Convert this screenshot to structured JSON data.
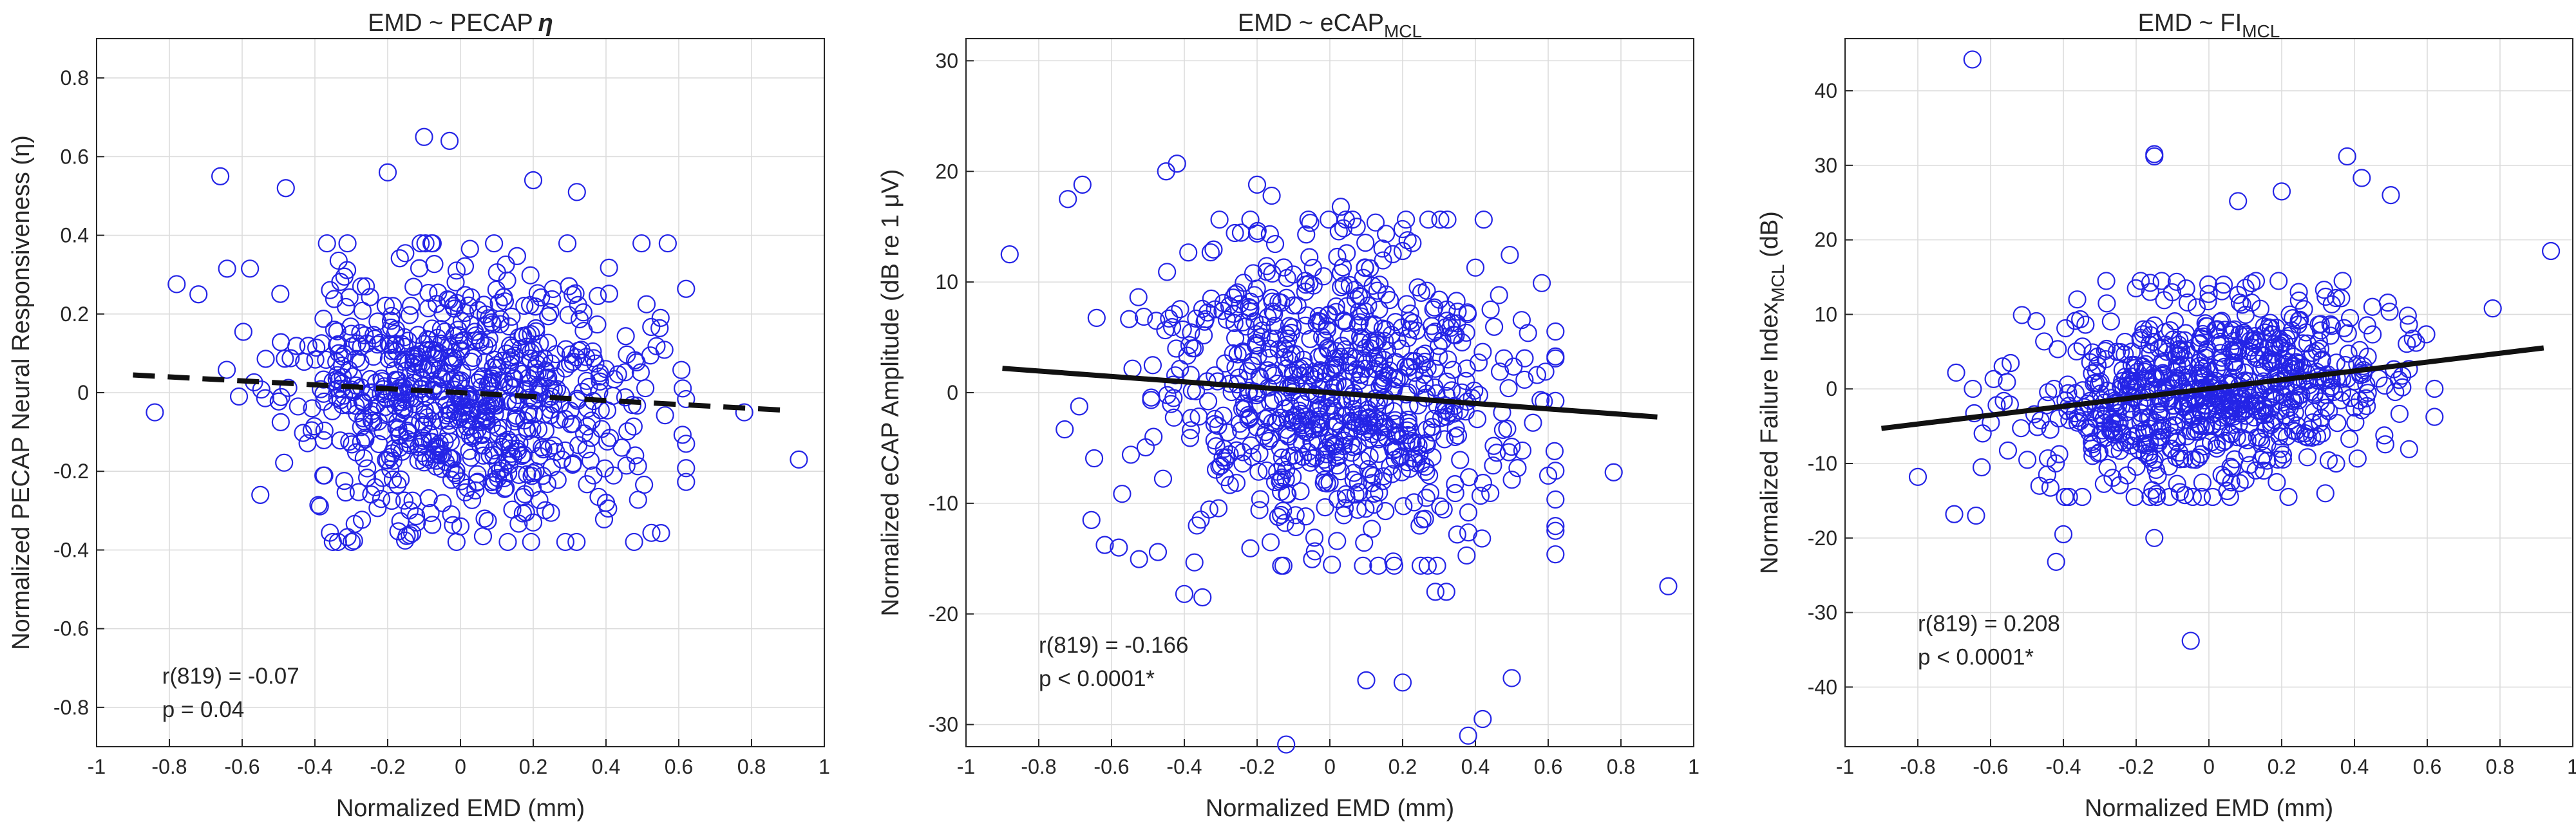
{
  "figure": {
    "marker_color": "#2424e6",
    "grid_color": "#dcdcdc",
    "axis_color": "#262626",
    "fit_color": "#111111"
  },
  "chart_data": [
    {
      "type": "scatter",
      "title": "EMD ~ PECAP",
      "title_symbol": "η",
      "title_sub": "",
      "xlabel": "Normalized EMD (mm)",
      "ylabel": "Normalized PECAP Neural Responsiveness (η)",
      "ylabel_sub": "",
      "xlim": [
        -1,
        1
      ],
      "ylim": [
        -0.9,
        0.9
      ],
      "xticks": [
        -1,
        -0.8,
        -0.6,
        -0.4,
        -0.2,
        0,
        0.2,
        0.4,
        0.6,
        0.8,
        1
      ],
      "xtick_labels": [
        "-1",
        "-0.8",
        "-0.6",
        "-0.4",
        "-0.2",
        "0",
        "0.2",
        "0.4",
        "0.6",
        "0.8",
        "1"
      ],
      "yticks": [
        -0.8,
        -0.6,
        -0.4,
        -0.2,
        0,
        0.2,
        0.4,
        0.6,
        0.8
      ],
      "ytick_labels": [
        "-0.8",
        "-0.6",
        "-0.4",
        "-0.2",
        "0",
        "0.2",
        "0.4",
        "0.6",
        "0.8"
      ],
      "grid": true,
      "fit": {
        "x": [
          -0.9,
          0.9
        ],
        "y": [
          0.045,
          -0.045
        ],
        "style": "dashed"
      },
      "stats": [
        "r(819) = -0.07",
        "p = 0.04"
      ],
      "stats_anchor": [
        -0.82,
        -0.74
      ],
      "highlight_points": [
        {
          "x": -0.84,
          "y": -0.05
        },
        {
          "x": -0.72,
          "y": 0.25
        },
        {
          "x": -0.66,
          "y": 0.55
        },
        {
          "x": -0.48,
          "y": 0.52
        },
        {
          "x": -0.2,
          "y": 0.56
        },
        {
          "x": -0.1,
          "y": 0.65
        },
        {
          "x": -0.03,
          "y": 0.64
        },
        {
          "x": 0.2,
          "y": 0.54
        },
        {
          "x": 0.32,
          "y": 0.51
        },
        {
          "x": 0.55,
          "y": 0.19
        },
        {
          "x": 0.62,
          "y": -0.13
        },
        {
          "x": 0.78,
          "y": -0.05
        },
        {
          "x": 0.93,
          "y": -0.17
        },
        {
          "x": 0.0,
          "y": -0.34
        },
        {
          "x": 0.2,
          "y": -0.33
        },
        {
          "x": 0.4,
          "y": -0.28
        },
        {
          "x": -0.55,
          "y": -0.26
        },
        {
          "x": -0.12,
          "y": -0.33
        }
      ],
      "cloud": {
        "n": 780,
        "seed": 11,
        "mean_x": 0.0,
        "sd_x": 0.24,
        "slope": -0.05,
        "intercept": 0.0,
        "sd_y": 0.165
      }
    },
    {
      "type": "scatter",
      "title": "EMD ~ eCAP",
      "title_symbol": "",
      "title_sub": "MCL",
      "xlabel": "Normalized EMD (mm)",
      "ylabel": "Normalized eCAP Amplitude (dB re 1 μV)",
      "ylabel_sub": "",
      "xlim": [
        -1,
        1
      ],
      "ylim": [
        -32,
        32
      ],
      "xticks": [
        -1,
        -0.8,
        -0.6,
        -0.4,
        -0.2,
        0,
        0.2,
        0.4,
        0.6,
        0.8,
        1
      ],
      "xtick_labels": [
        "-1",
        "-0.8",
        "-0.6",
        "-0.4",
        "-0.2",
        "0",
        "0.2",
        "0.4",
        "0.6",
        "0.8",
        "1"
      ],
      "yticks": [
        -30,
        -20,
        -10,
        0,
        10,
        20,
        30
      ],
      "ytick_labels": [
        "-30",
        "-20",
        "-10",
        "0",
        "10",
        "20",
        "30"
      ],
      "grid": true,
      "fit": {
        "x": [
          -0.9,
          0.9
        ],
        "y": [
          2.2,
          -2.2
        ],
        "style": "solid"
      },
      "stats": [
        "r(819) = -0.166",
        "p < 0.0001*"
      ],
      "stats_anchor": [
        -0.8,
        -23.5
      ],
      "highlight_points": [
        {
          "x": -0.88,
          "y": 12.5
        },
        {
          "x": -0.72,
          "y": 17.5
        },
        {
          "x": -0.68,
          "y": 18.8
        },
        {
          "x": -0.42,
          "y": 20.7
        },
        {
          "x": -0.45,
          "y": 20.0
        },
        {
          "x": -0.2,
          "y": 18.8
        },
        {
          "x": -0.16,
          "y": 17.8
        },
        {
          "x": 0.03,
          "y": 16.8
        },
        {
          "x": 0.2,
          "y": 12.8
        },
        {
          "x": 0.4,
          "y": 11.3
        },
        {
          "x": 0.6,
          "y": -7.5
        },
        {
          "x": 0.78,
          "y": -7.2
        },
        {
          "x": 0.93,
          "y": -17.5
        },
        {
          "x": -0.12,
          "y": -31.8
        },
        {
          "x": 0.1,
          "y": -26.0
        },
        {
          "x": 0.2,
          "y": -26.2
        },
        {
          "x": 0.38,
          "y": -31.0
        },
        {
          "x": 0.42,
          "y": -29.5
        },
        {
          "x": 0.5,
          "y": -25.8
        },
        {
          "x": -0.58,
          "y": -14.0
        },
        {
          "x": -0.4,
          "y": -18.2
        },
        {
          "x": -0.35,
          "y": -18.5
        },
        {
          "x": 0.29,
          "y": -18.0
        },
        {
          "x": 0.32,
          "y": -18.0
        }
      ],
      "cloud": {
        "n": 780,
        "seed": 23,
        "mean_x": 0.0,
        "sd_x": 0.24,
        "slope": -2.4,
        "intercept": 0.0,
        "sd_y": 6.8
      }
    },
    {
      "type": "scatter",
      "title": "EMD ~ FI",
      "title_symbol": "",
      "title_sub": "MCL",
      "xlabel": "Normalized EMD (mm)",
      "ylabel": "Normalized Failure Index",
      "ylabel_sub": "MCL",
      "ylabel_suffix": " (dB)",
      "xlim": [
        -1,
        1
      ],
      "ylim": [
        -48,
        47
      ],
      "xticks": [
        -1,
        -0.8,
        -0.6,
        -0.4,
        -0.2,
        0,
        0.2,
        0.4,
        0.6,
        0.8,
        1
      ],
      "xtick_labels": [
        "-1",
        "-0.8",
        "-0.6",
        "-0.4",
        "-0.2",
        "0",
        "0.2",
        "0.4",
        "0.6",
        "0.8",
        "1"
      ],
      "yticks": [
        -40,
        -30,
        -20,
        -10,
        0,
        10,
        20,
        30,
        40
      ],
      "ytick_labels": [
        "-40",
        "-30",
        "-20",
        "-10",
        "0",
        "10",
        "20",
        "30",
        "40"
      ],
      "grid": true,
      "fit": {
        "x": [
          -0.9,
          0.92
        ],
        "y": [
          -5.3,
          5.5
        ],
        "style": "solid"
      },
      "stats": [
        "r(819) = 0.208",
        "p < 0.0001*"
      ],
      "stats_anchor": [
        -0.8,
        -32.5
      ],
      "highlight_points": [
        {
          "x": -0.65,
          "y": 44.2
        },
        {
          "x": -0.15,
          "y": 31.2
        },
        {
          "x": -0.15,
          "y": 31.5
        },
        {
          "x": 0.38,
          "y": 31.2
        },
        {
          "x": 0.42,
          "y": 28.3
        },
        {
          "x": 0.08,
          "y": 25.2
        },
        {
          "x": 0.2,
          "y": 26.5
        },
        {
          "x": 0.5,
          "y": 26.0
        },
        {
          "x": 0.94,
          "y": 18.5
        },
        {
          "x": 0.78,
          "y": 10.8
        },
        {
          "x": -0.8,
          "y": -11.8
        },
        {
          "x": -0.7,
          "y": -16.8
        },
        {
          "x": -0.64,
          "y": -17.0
        },
        {
          "x": -0.42,
          "y": -23.2
        },
        {
          "x": -0.4,
          "y": -19.5
        },
        {
          "x": -0.05,
          "y": -33.8
        },
        {
          "x": -0.15,
          "y": -20.0
        },
        {
          "x": 0.32,
          "y": -14.0
        }
      ],
      "cloud": {
        "n": 780,
        "seed": 37,
        "mean_x": 0.0,
        "sd_x": 0.24,
        "slope": 6.0,
        "intercept": 0.0,
        "sd_y": 6.3
      }
    }
  ]
}
